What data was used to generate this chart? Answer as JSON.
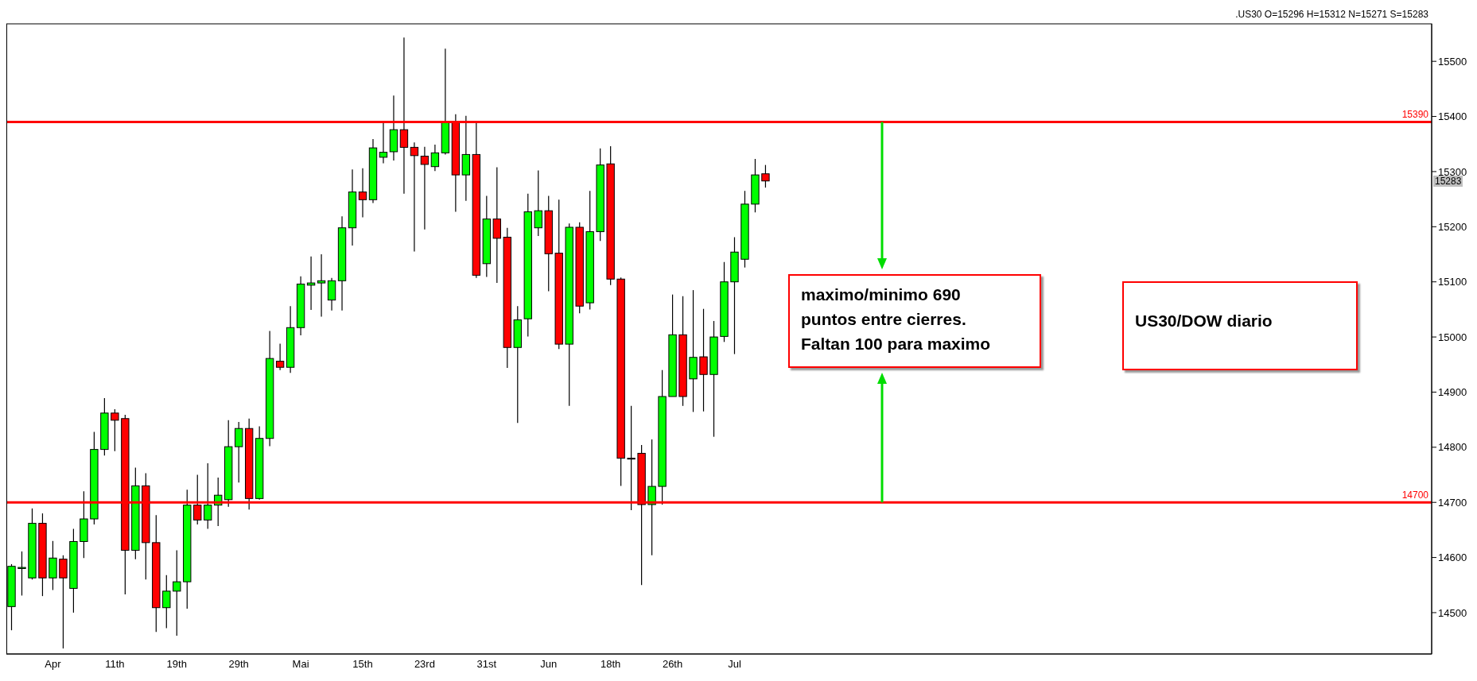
{
  "chart_data": {
    "type": "candlestick",
    "categories": [
      null,
      null,
      null,
      null,
      "Apr",
      null,
      null,
      null,
      null,
      null,
      "11th",
      null,
      null,
      null,
      null,
      null,
      "19th",
      null,
      null,
      null,
      null,
      null,
      "29th",
      null,
      null,
      null,
      null,
      null,
      "Mai",
      null,
      null,
      null,
      null,
      null,
      "15th",
      null,
      null,
      null,
      null,
      null,
      "23rd",
      null,
      null,
      null,
      null,
      null,
      "31st",
      null,
      null,
      null,
      null,
      null,
      "Jun",
      null,
      null,
      null,
      null,
      null,
      "18th",
      null,
      null,
      null,
      null,
      null,
      "26th",
      null,
      null,
      null,
      null,
      null,
      "Jul",
      null,
      null,
      null,
      null,
      null,
      null,
      null,
      null,
      null,
      null,
      null,
      null,
      null,
      null,
      null,
      null,
      null,
      null,
      null,
      null,
      null,
      null,
      null,
      null,
      null,
      null,
      null,
      null,
      null,
      null,
      null,
      null,
      null,
      null,
      null,
      null,
      null,
      null,
      null,
      null,
      null,
      null,
      null,
      null,
      null,
      null,
      null,
      null,
      null,
      null,
      null,
      null,
      null,
      null,
      null,
      null,
      null,
      null,
      null,
      null,
      null,
      null,
      null,
      null,
      null,
      null,
      null
    ],
    "ohlc": [
      [
        14511,
        14588,
        14468,
        14584
      ],
      [
        14580,
        14611,
        14531,
        14582
      ],
      [
        14563,
        14689,
        14560,
        14662
      ],
      [
        14662,
        14680,
        14530,
        14563
      ],
      [
        14563,
        14630,
        14541,
        14599
      ],
      [
        14597,
        14604,
        14435,
        14563
      ],
      [
        14544,
        14652,
        14500,
        14629
      ],
      [
        14629,
        14720,
        14599,
        14670
      ],
      [
        14670,
        14828,
        14660,
        14796
      ],
      [
        14796,
        14889,
        14785,
        14862
      ],
      [
        14862,
        14869,
        14793,
        14849
      ],
      [
        14852,
        14859,
        14533,
        14613
      ],
      [
        14613,
        14763,
        14597,
        14730
      ],
      [
        14730,
        14753,
        14560,
        14627
      ],
      [
        14627,
        14677,
        14465,
        14509
      ],
      [
        14509,
        14568,
        14472,
        14539
      ],
      [
        14539,
        14613,
        14458,
        14556
      ],
      [
        14556,
        14723,
        14507,
        14695
      ],
      [
        14695,
        14750,
        14660,
        14668
      ],
      [
        14668,
        14771,
        14652,
        14695
      ],
      [
        14695,
        14745,
        14657,
        14713
      ],
      [
        14705,
        14849,
        14692,
        14801
      ],
      [
        14801,
        14846,
        14736,
        14834
      ],
      [
        14834,
        14852,
        14687,
        14707
      ],
      [
        14707,
        14838,
        14705,
        14816
      ],
      [
        14816,
        15011,
        14802,
        14961
      ],
      [
        14956,
        14988,
        14940,
        14945
      ],
      [
        14945,
        15056,
        14935,
        15017
      ],
      [
        15017,
        15110,
        15003,
        15096
      ],
      [
        15094,
        15146,
        15049,
        15098
      ],
      [
        15098,
        15150,
        15037,
        15102
      ],
      [
        15067,
        15107,
        15048,
        15102
      ],
      [
        15102,
        15219,
        15048,
        15198
      ],
      [
        15198,
        15304,
        15166,
        15263
      ],
      [
        15263,
        15306,
        15217,
        15249
      ],
      [
        15249,
        15359,
        15243,
        15343
      ],
      [
        15326,
        15388,
        15315,
        15335
      ],
      [
        15336,
        15438,
        15320,
        15376
      ],
      [
        15376,
        15543,
        15260,
        15344
      ],
      [
        15344,
        15353,
        15155,
        15329
      ],
      [
        15328,
        15345,
        15195,
        15313
      ],
      [
        15309,
        15349,
        15301,
        15334
      ],
      [
        15334,
        15523,
        15331,
        15389
      ],
      [
        15389,
        15404,
        15227,
        15294
      ],
      [
        15294,
        15401,
        15247,
        15331
      ],
      [
        15331,
        15389,
        15107,
        15112
      ],
      [
        15133,
        15256,
        15109,
        15214
      ],
      [
        15214,
        15308,
        15098,
        15179
      ],
      [
        15181,
        15198,
        14944,
        14981
      ],
      [
        14981,
        15056,
        14844,
        15031
      ],
      [
        15033,
        15260,
        15001,
        15227
      ],
      [
        15198,
        15302,
        15183,
        15229
      ],
      [
        15229,
        15256,
        15083,
        15151
      ],
      [
        15152,
        15249,
        14978,
        14987
      ],
      [
        14987,
        15206,
        14875,
        15199
      ],
      [
        15199,
        15208,
        15043,
        15056
      ],
      [
        15062,
        15265,
        15050,
        15191
      ],
      [
        15191,
        15342,
        15174,
        15312
      ],
      [
        15314,
        15346,
        15094,
        15105
      ],
      [
        15105,
        15108,
        14730,
        14780
      ],
      [
        14780,
        14875,
        14686,
        14780
      ],
      [
        14789,
        14804,
        14550,
        14696
      ],
      [
        14696,
        14814,
        14604,
        14729
      ],
      [
        14729,
        14940,
        14696,
        14892
      ],
      [
        14892,
        15077,
        14892,
        15004
      ],
      [
        15004,
        15074,
        14875,
        14892
      ],
      [
        14924,
        15085,
        14864,
        14963
      ],
      [
        14964,
        15051,
        14865,
        14932
      ],
      [
        14932,
        15029,
        14819,
        15000
      ],
      [
        15001,
        15136,
        14991,
        15100
      ],
      [
        15100,
        15181,
        14969,
        15154
      ],
      [
        15141,
        15265,
        15126,
        15241
      ],
      [
        15241,
        15323,
        15226,
        15294
      ],
      [
        15296,
        15312,
        15271,
        15283
      ],
      null,
      null,
      null,
      null,
      null,
      null,
      null,
      null,
      null,
      null,
      null,
      null,
      null,
      null,
      null,
      null,
      null,
      null,
      null,
      null,
      null,
      null,
      null,
      null,
      null,
      null,
      null,
      null,
      null,
      null,
      null,
      null,
      null,
      null,
      null,
      null,
      null,
      null,
      null,
      null,
      null,
      null,
      null,
      null,
      null,
      null,
      null,
      null,
      null,
      null,
      null,
      null,
      null,
      null,
      null,
      null,
      null,
      null,
      null,
      null,
      null,
      null,
      null,
      null
    ],
    "colors": [
      "#00ff00",
      "#00ff00",
      "#00ff00",
      "#ff0000",
      "#00ff00",
      "#ff0000",
      "#00ff00",
      "#00ff00",
      "#00ff00",
      "#00ff00",
      "#ff0000",
      "#ff0000",
      "#00ff00",
      "#ff0000",
      "#ff0000",
      "#00ff00",
      "#00ff00",
      "#00ff00",
      "#ff0000",
      "#00ff00",
      "#00ff00",
      "#00ff00",
      "#00ff00",
      "#ff0000",
      "#00ff00",
      "#00ff00",
      "#ff0000",
      "#00ff00",
      "#00ff00",
      "#00ff00",
      "#00ff00",
      "#00ff00",
      "#00ff00",
      "#00ff00",
      "#ff0000",
      "#00ff00",
      "#00ff00",
      "#00ff00",
      "#ff0000",
      "#ff0000",
      "#ff0000",
      "#00ff00",
      "#00ff00",
      "#ff0000",
      "#00ff00",
      "#ff0000",
      "#00ff00",
      "#ff0000",
      "#ff0000",
      "#00ff00",
      "#00ff00",
      "#00ff00",
      "#ff0000",
      "#ff0000",
      "#00ff00",
      "#ff0000",
      "#00ff00",
      "#00ff00",
      "#ff0000",
      "#ff0000",
      "#ff0000",
      "#ff0000",
      "#00ff00",
      "#00ff00",
      "#00ff00",
      "#ff0000",
      "#00ff00",
      "#ff0000",
      "#00ff00",
      "#00ff00",
      "#00ff00",
      "#00ff00",
      "#00ff00",
      "#ff0000",
      null,
      null,
      null,
      null,
      null,
      null,
      null,
      null,
      null,
      null,
      null,
      null,
      null,
      null,
      null,
      null,
      null,
      null,
      null,
      null,
      null,
      null,
      null,
      null,
      null,
      null,
      null,
      null,
      null,
      null,
      null,
      null,
      null,
      null,
      null,
      null,
      null,
      null,
      null,
      null,
      null,
      null,
      null,
      null,
      null,
      null,
      null,
      null,
      null,
      null,
      null,
      null,
      null,
      null,
      null,
      null,
      null,
      null,
      null,
      null,
      null,
      null,
      null,
      null
    ],
    "ylim": [
      14425,
      15568
    ],
    "yticks": [
      14500,
      14600,
      14700,
      14800,
      14900,
      15000,
      15100,
      15200,
      15300,
      15400,
      15500
    ],
    "ref_lines": [
      {
        "axis": "y",
        "value": 15390,
        "label": "15390",
        "color": "#ff0000"
      },
      {
        "axis": "y",
        "value": 14700,
        "label": "14700",
        "color": "#ff0000"
      }
    ],
    "annotations": [
      ".US30 O=15296 H=15312 N=15271 S=15283",
      "maximo/minimo 690 puntos entre cierres. Faltan 100 para maximo",
      "US30/DOW diario",
      {
        "text": "15283",
        "y": 15283
      }
    ]
  }
}
